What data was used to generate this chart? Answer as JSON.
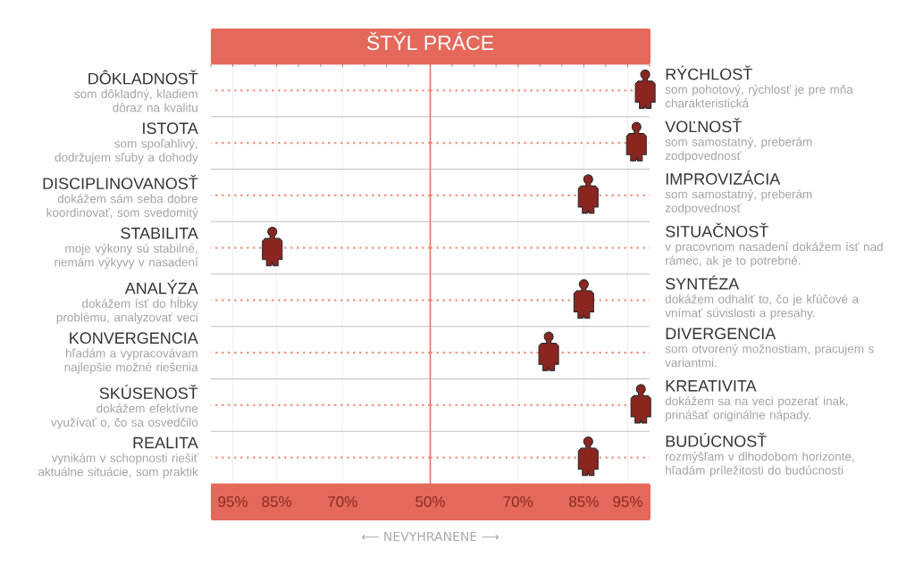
{
  "chart_data": [
    {
      "type": "scatter",
      "orientation": "horizontal",
      "title": "ŠTÝL PRÁCE",
      "xlabel": "⟵ NEVYHRANENE ⟶",
      "categories": [
        "DÔKLADNOSŤ\nsom dôkladný, kladiem dôraz na kvalitu",
        "ISTOTA\nsom spoľahlivý, dodržujem sľuby a dohody",
        "DISCIPLINOVANOSŤ\ndokážem sám seba dobre koordinovať, som svedomitý",
        "STABILITA\nmoje výkony sú stabilné, nemám výkyvy v nasadení",
        "ANALÝZA\ndokážem ísť do hĺbky problému, analyzovať veci",
        "KONVERGENCIA\nhľadám a vypracovávam najlepšie možné riešenia",
        "SKÚSENOSŤ\ndokážem efektívne využívať o, čo sa osvedčilo",
        "REALITA\nvynikám v schopnosti riešiť aktuálne situácie, som praktik"
      ],
      "values": [
        null,
        null,
        null,
        86,
        null,
        null,
        null,
        null
      ],
      "color": "#8b2520",
      "xlim": [
        100,
        50
      ],
      "xticks": [
        {
          "value": 100,
          "label": null
        },
        {
          "value": 95,
          "label": "95%"
        },
        {
          "value": 90,
          "label": null
        },
        {
          "value": 85,
          "label": "85%"
        },
        {
          "value": 80,
          "label": null
        },
        {
          "value": 75,
          "label": null
        },
        {
          "value": 70,
          "label": "70%"
        },
        {
          "value": 65,
          "label": null
        },
        {
          "value": 60,
          "label": null
        },
        {
          "value": 55,
          "label": null
        },
        {
          "value": 50,
          "label": "50%"
        }
      ],
      "ref_lines": [
        {
          "axis": "x",
          "value": 50,
          "color": "#e8675a"
        }
      ],
      "grid": true
    },
    {
      "type": "scatter",
      "orientation": "horizontal",
      "categories": [
        "RÝCHLOSŤ\nsom pohotový, rýchlosť je pre mňa charakteristická",
        "VOĽNOSŤ\nsom samostatný, preberám zodpovednosť",
        "IMPROVIZÁCIA\nsom samostatný, preberám zodpovednosť",
        "SITUAČNOSŤ\nv pracovnom nasadení dokážem ísť nad rámec, ak je to potrebné.",
        "SYNTÉZA\ndokážem odhaliť to, čo je kľúčové a vnímať súvislosti a presahy.",
        "DIVERGENCIA\nsom otvorený možnostiam, pracujem s variantmi.",
        "KREATIVITA\ndokážem sa na veci pozerať inak, prinášať originálne nápady.",
        "BUDÚCNOSŤ\nrozmýšľam v dlhodobom horizonte, hľadám príležitosti do budúcnosti"
      ],
      "values": [
        99,
        97,
        86,
        null,
        85,
        77,
        98,
        86
      ],
      "color": "#8b2520",
      "xlim": [
        50,
        100
      ],
      "xticks": [
        {
          "value": 55,
          "label": null
        },
        {
          "value": 60,
          "label": null
        },
        {
          "value": 65,
          "label": null
        },
        {
          "value": 70,
          "label": "70%"
        },
        {
          "value": 75,
          "label": null
        },
        {
          "value": 80,
          "label": null
        },
        {
          "value": 85,
          "label": "85%"
        },
        {
          "value": 90,
          "label": null
        },
        {
          "value": 95,
          "label": "95%"
        },
        {
          "value": 100,
          "label": null
        }
      ],
      "grid": true
    }
  ]
}
